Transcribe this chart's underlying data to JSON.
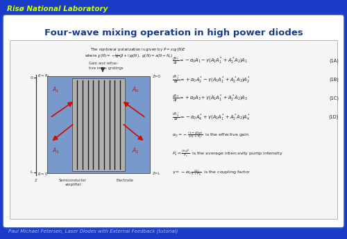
{
  "bg_color": "#1a3cc8",
  "title_text": "Four-wave mixing operation in high power diodes",
  "header_text": "Risø National Laboratory",
  "footer_text": "Paul Michael Petersen, Laser Diodes with External Feedback (tutorial)",
  "header_color": "#ccff00",
  "footer_color": "#aabbee",
  "title_color": "#ffffff",
  "panel_bg": "#ffffff",
  "panel_edge": "#3355bb"
}
